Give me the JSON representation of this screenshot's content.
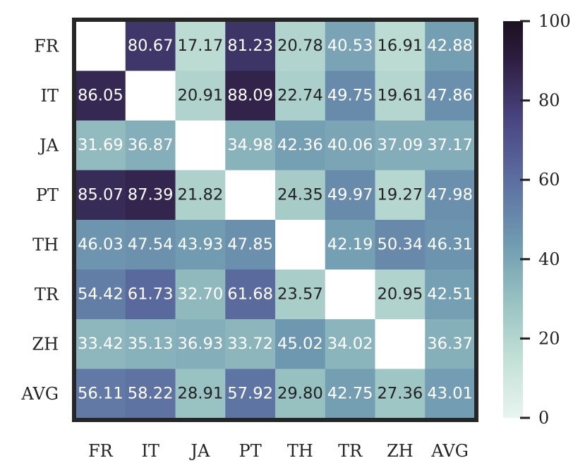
{
  "chart_data": {
    "type": "heatmap",
    "title": "",
    "xlabel": "",
    "ylabel": "",
    "x_categories": [
      "FR",
      "IT",
      "JA",
      "PT",
      "TH",
      "TR",
      "ZH",
      "AVG"
    ],
    "y_categories": [
      "FR",
      "IT",
      "JA",
      "PT",
      "TH",
      "TR",
      "ZH",
      "AVG"
    ],
    "values": [
      [
        null,
        "80.67",
        "17.17",
        "81.23",
        "20.78",
        "40.53",
        "16.91",
        "42.88"
      ],
      [
        "86.05",
        null,
        "20.91",
        "88.09",
        "22.74",
        "49.75",
        "19.61",
        "47.86"
      ],
      [
        "31.69",
        "36.87",
        null,
        "34.98",
        "42.36",
        "40.06",
        "37.09",
        "37.17"
      ],
      [
        "85.07",
        "87.39",
        "21.82",
        null,
        "24.35",
        "49.97",
        "19.27",
        "47.98"
      ],
      [
        "46.03",
        "47.54",
        "43.93",
        "47.85",
        null,
        "42.19",
        "50.34",
        "46.31"
      ],
      [
        "54.42",
        "61.73",
        "32.70",
        "61.68",
        "23.57",
        null,
        "20.95",
        "42.51"
      ],
      [
        "33.42",
        "35.13",
        "36.93",
        "33.72",
        "45.02",
        "34.02",
        null,
        "36.37"
      ],
      [
        "56.11",
        "58.22",
        "28.91",
        "57.92",
        "29.80",
        "42.75",
        "27.36",
        "43.01"
      ]
    ],
    "colorbar": {
      "range": [
        0,
        100
      ],
      "ticks": [
        "0",
        "20",
        "40",
        "60",
        "80",
        "100"
      ]
    },
    "colormap_stops": [
      {
        "v": 0,
        "color": "#e8f4ef"
      },
      {
        "v": 15,
        "color": "#c2e0d6"
      },
      {
        "v": 30,
        "color": "#96c0c0"
      },
      {
        "v": 45,
        "color": "#6e98b0"
      },
      {
        "v": 60,
        "color": "#5c6ea0"
      },
      {
        "v": 75,
        "color": "#4a4682"
      },
      {
        "v": 90,
        "color": "#2e1e42"
      },
      {
        "v": 100,
        "color": "#1b111f"
      }
    ],
    "grid": false,
    "border_color": "#262626"
  }
}
